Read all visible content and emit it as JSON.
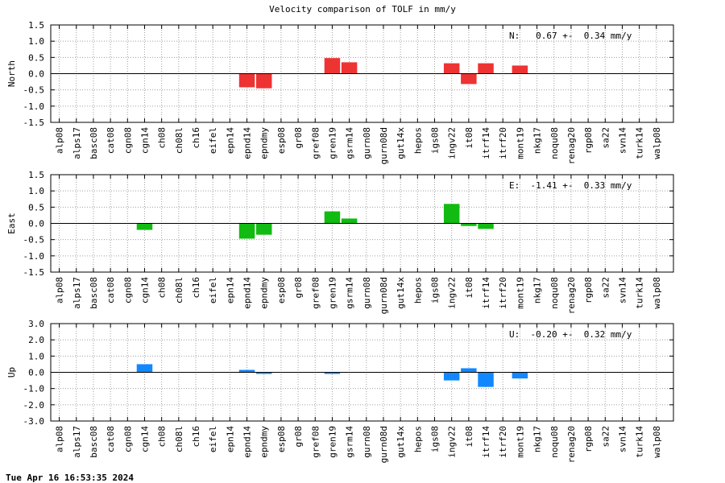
{
  "title": "Velocity comparison of TOLF in mm/y",
  "timestamp": "Tue Apr 16 16:53:35 2024",
  "chart_data": [
    {
      "type": "bar",
      "ylabel": "North",
      "ylim": [
        -1.5,
        1.5
      ],
      "yticks": [
        "1.5",
        "1.0",
        "0.5",
        "0.0",
        "-0.5",
        "-1.0",
        "-1.5"
      ],
      "ytick_values": [
        1.5,
        1.0,
        0.5,
        0.0,
        -0.5,
        -1.0,
        -1.5
      ],
      "color": "#ee3333",
      "annotation": "N:   0.67 +-  0.34 mm/y",
      "grid": true,
      "categories": [
        "alp08",
        "alps17",
        "basc08",
        "cat08",
        "cgn08",
        "cgn14",
        "ch08",
        "ch08l",
        "ch16",
        "eifel",
        "epn14",
        "epnd14",
        "epndmy",
        "esp08",
        "gr08",
        "gref08",
        "gren19",
        "gsrm14",
        "gurn08",
        "gurn08d",
        "gut14x",
        "hepos",
        "igs08",
        "ingv22",
        "it08",
        "itrf14",
        "itrf20",
        "mont19",
        "nkg17",
        "noqu08",
        "renag20",
        "rgp08",
        "sa22",
        "svn14",
        "turk14",
        "walp08"
      ],
      "values": [
        null,
        null,
        null,
        null,
        null,
        null,
        null,
        null,
        null,
        null,
        null,
        -0.42,
        -0.45,
        null,
        null,
        null,
        0.48,
        0.35,
        null,
        null,
        null,
        null,
        null,
        0.32,
        -0.32,
        0.32,
        null,
        0.25,
        null,
        null,
        null,
        null,
        null,
        null,
        null,
        null
      ]
    },
    {
      "type": "bar",
      "ylabel": "East",
      "ylim": [
        -1.5,
        1.5
      ],
      "yticks": [
        "1.5",
        "1.0",
        "0.5",
        "0.0",
        "-0.5",
        "-1.0",
        "-1.5"
      ],
      "ytick_values": [
        1.5,
        1.0,
        0.5,
        0.0,
        -0.5,
        -1.0,
        -1.5
      ],
      "color": "#11bb11",
      "annotation": "E:  -1.41 +-  0.33 mm/y",
      "grid": true,
      "categories": [
        "alp08",
        "alps17",
        "basc08",
        "cat08",
        "cgn08",
        "cgn14",
        "ch08",
        "ch08l",
        "ch16",
        "eifel",
        "epn14",
        "epnd14",
        "epndmy",
        "esp08",
        "gr08",
        "gref08",
        "gren19",
        "gsrm14",
        "gurn08",
        "gurn08d",
        "gut14x",
        "hepos",
        "igs08",
        "ingv22",
        "it08",
        "itrf14",
        "itrf20",
        "mont19",
        "nkg17",
        "noqu08",
        "renag20",
        "rgp08",
        "sa22",
        "svn14",
        "turk14",
        "walp08"
      ],
      "values": [
        null,
        null,
        null,
        null,
        null,
        -0.2,
        null,
        null,
        null,
        null,
        null,
        -0.47,
        -0.35,
        null,
        null,
        null,
        0.37,
        0.15,
        null,
        null,
        null,
        null,
        null,
        0.6,
        -0.08,
        -0.17,
        null,
        null,
        null,
        null,
        null,
        null,
        null,
        null,
        null,
        null
      ]
    },
    {
      "type": "bar",
      "ylabel": "Up",
      "ylim": [
        -3.0,
        3.0
      ],
      "yticks": [
        "3.0",
        "2.0",
        "1.0",
        "0.0",
        "-1.0",
        "-2.0",
        "-3.0"
      ],
      "ytick_values": [
        3.0,
        2.0,
        1.0,
        0.0,
        -1.0,
        -2.0,
        -3.0
      ],
      "color": "#1188ff",
      "annotation": "U:  -0.20 +-  0.32 mm/y",
      "grid": true,
      "categories": [
        "alp08",
        "alps17",
        "basc08",
        "cat08",
        "cgn08",
        "cgn14",
        "ch08",
        "ch08l",
        "ch16",
        "eifel",
        "epn14",
        "epnd14",
        "epndmy",
        "esp08",
        "gr08",
        "gref08",
        "gren19",
        "gsrm14",
        "gurn08",
        "gurn08d",
        "gut14x",
        "hepos",
        "igs08",
        "ingv22",
        "it08",
        "itrf14",
        "itrf20",
        "mont19",
        "nkg17",
        "noqu08",
        "renag20",
        "rgp08",
        "sa22",
        "svn14",
        "turk14",
        "walp08"
      ],
      "values": [
        null,
        null,
        null,
        null,
        null,
        0.5,
        null,
        null,
        null,
        null,
        null,
        0.15,
        -0.1,
        null,
        null,
        null,
        -0.1,
        null,
        null,
        null,
        null,
        null,
        null,
        -0.5,
        0.25,
        -0.9,
        null,
        -0.38,
        null,
        null,
        null,
        null,
        null,
        null,
        null,
        null
      ]
    }
  ]
}
